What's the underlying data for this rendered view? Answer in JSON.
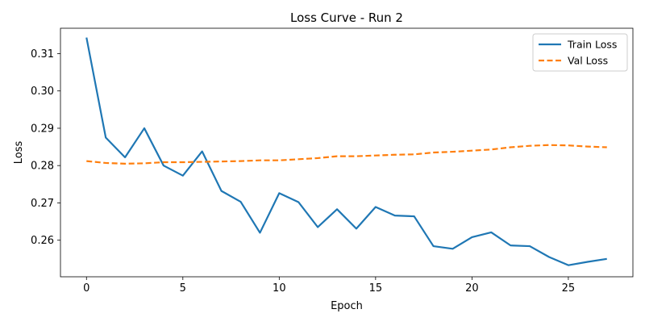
{
  "chart_data": {
    "type": "line",
    "title": "Loss Curve - Run 2",
    "xlabel": "Epoch",
    "ylabel": "Loss",
    "xlim": [
      -1.35,
      28.35
    ],
    "ylim": [
      0.2502,
      0.3168
    ],
    "xticks": [
      0,
      5,
      10,
      15,
      20,
      25
    ],
    "xtick_labels": [
      "0",
      "5",
      "10",
      "15",
      "20",
      "25"
    ],
    "yticks": [
      0.26,
      0.27,
      0.28,
      0.29,
      0.3,
      0.31
    ],
    "ytick_labels": [
      "0.26",
      "0.27",
      "0.28",
      "0.29",
      "0.30",
      "0.31"
    ],
    "grid": false,
    "legend_position": "top-right",
    "x": [
      0,
      1,
      2,
      3,
      4,
      5,
      6,
      7,
      8,
      9,
      10,
      11,
      12,
      13,
      14,
      15,
      16,
      17,
      18,
      19,
      20,
      21,
      22,
      23,
      24,
      25,
      26,
      27
    ],
    "series": [
      {
        "name": "Train Loss",
        "color": "#1f77b4",
        "style": "solid",
        "values": [
          0.3143,
          0.2875,
          0.2822,
          0.29,
          0.28,
          0.2773,
          0.2838,
          0.2732,
          0.2703,
          0.262,
          0.2726,
          0.2702,
          0.2635,
          0.2683,
          0.2631,
          0.2689,
          0.2666,
          0.2664,
          0.2584,
          0.2577,
          0.2608,
          0.2621,
          0.2586,
          0.2584,
          0.2555,
          0.2533,
          0.2542,
          0.255
        ]
      },
      {
        "name": "Val Loss",
        "color": "#ff7f0e",
        "style": "dashed",
        "values": [
          0.2812,
          0.2807,
          0.2805,
          0.2806,
          0.2809,
          0.2809,
          0.281,
          0.2811,
          0.2812,
          0.2814,
          0.2814,
          0.2817,
          0.282,
          0.2825,
          0.2825,
          0.2827,
          0.2829,
          0.283,
          0.2835,
          0.2837,
          0.284,
          0.2843,
          0.2849,
          0.2853,
          0.2855,
          0.2854,
          0.2851,
          0.2849
        ]
      }
    ]
  }
}
